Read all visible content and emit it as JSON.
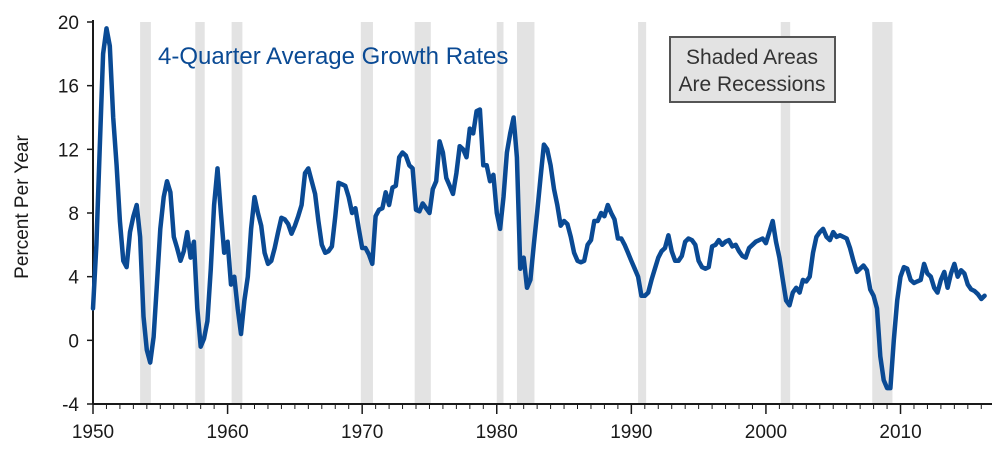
{
  "chart_data": {
    "type": "line",
    "title": "4-Quarter Average Growth Rates",
    "ylabel": "Percent Per Year",
    "xlabel": "",
    "xlim": [
      1950,
      2016.5
    ],
    "ylim": [
      -4,
      20
    ],
    "xticks": [
      1950,
      1960,
      1970,
      1980,
      1990,
      2000,
      2010
    ],
    "yticks": [
      -4,
      0,
      4,
      8,
      12,
      16,
      20
    ],
    "annotation": {
      "line1": "Shaded Areas",
      "line2": "Are Recessions"
    },
    "colors": {
      "line": "#0a4a94",
      "recession": "#e3e3e3",
      "axis": "#1a1a1a"
    },
    "recessions": [
      [
        1953.5,
        1954.3
      ],
      [
        1957.6,
        1958.3
      ],
      [
        1960.3,
        1961.1
      ],
      [
        1969.9,
        1970.8
      ],
      [
        1973.9,
        1975.1
      ],
      [
        1980.0,
        1980.5
      ],
      [
        1981.5,
        1982.8
      ],
      [
        1990.5,
        1991.1
      ],
      [
        2001.1,
        2001.8
      ],
      [
        2007.9,
        2009.4
      ]
    ],
    "series": [
      {
        "name": "4-Quarter Average Growth Rate",
        "points": [
          [
            1950.0,
            2.0
          ],
          [
            1950.25,
            6.0
          ],
          [
            1950.5,
            12.0
          ],
          [
            1950.75,
            18.0
          ],
          [
            1951.0,
            19.6
          ],
          [
            1951.25,
            18.5
          ],
          [
            1951.5,
            14.0
          ],
          [
            1951.75,
            11.0
          ],
          [
            1952.0,
            7.5
          ],
          [
            1952.25,
            5.0
          ],
          [
            1952.5,
            4.6
          ],
          [
            1952.75,
            6.8
          ],
          [
            1953.0,
            7.8
          ],
          [
            1953.25,
            8.5
          ],
          [
            1953.5,
            6.5
          ],
          [
            1953.75,
            1.5
          ],
          [
            1954.0,
            -0.6
          ],
          [
            1954.25,
            -1.4
          ],
          [
            1954.5,
            0.2
          ],
          [
            1954.75,
            3.5
          ],
          [
            1955.0,
            7.0
          ],
          [
            1955.25,
            9.0
          ],
          [
            1955.5,
            10.0
          ],
          [
            1955.75,
            9.3
          ],
          [
            1956.0,
            6.5
          ],
          [
            1956.25,
            5.8
          ],
          [
            1956.5,
            5.0
          ],
          [
            1956.75,
            5.6
          ],
          [
            1957.0,
            6.8
          ],
          [
            1957.25,
            5.2
          ],
          [
            1957.5,
            6.2
          ],
          [
            1957.75,
            2.0
          ],
          [
            1958.0,
            -0.4
          ],
          [
            1958.25,
            0.1
          ],
          [
            1958.5,
            1.2
          ],
          [
            1958.75,
            4.5
          ],
          [
            1959.0,
            8.5
          ],
          [
            1959.25,
            10.8
          ],
          [
            1959.5,
            8.0
          ],
          [
            1959.75,
            5.5
          ],
          [
            1960.0,
            6.2
          ],
          [
            1960.25,
            3.5
          ],
          [
            1960.5,
            4.0
          ],
          [
            1960.75,
            2.0
          ],
          [
            1961.0,
            0.4
          ],
          [
            1961.25,
            2.5
          ],
          [
            1961.5,
            4.0
          ],
          [
            1961.75,
            7.0
          ],
          [
            1962.0,
            9.0
          ],
          [
            1962.25,
            8.0
          ],
          [
            1962.5,
            7.2
          ],
          [
            1962.75,
            5.5
          ],
          [
            1963.0,
            4.8
          ],
          [
            1963.25,
            5.0
          ],
          [
            1963.5,
            5.8
          ],
          [
            1963.75,
            6.8
          ],
          [
            1964.0,
            7.7
          ],
          [
            1964.25,
            7.6
          ],
          [
            1964.5,
            7.3
          ],
          [
            1964.75,
            6.7
          ],
          [
            1965.0,
            7.2
          ],
          [
            1965.25,
            7.8
          ],
          [
            1965.5,
            8.5
          ],
          [
            1965.75,
            10.5
          ],
          [
            1966.0,
            10.8
          ],
          [
            1966.25,
            10.0
          ],
          [
            1966.5,
            9.2
          ],
          [
            1966.75,
            7.5
          ],
          [
            1967.0,
            6.0
          ],
          [
            1967.25,
            5.5
          ],
          [
            1967.5,
            5.6
          ],
          [
            1967.75,
            5.9
          ],
          [
            1968.0,
            7.8
          ],
          [
            1968.25,
            9.9
          ],
          [
            1968.5,
            9.8
          ],
          [
            1968.75,
            9.7
          ],
          [
            1969.0,
            9.0
          ],
          [
            1969.25,
            8.0
          ],
          [
            1969.5,
            8.3
          ],
          [
            1969.75,
            7.0
          ],
          [
            1970.0,
            5.8
          ],
          [
            1970.25,
            5.8
          ],
          [
            1970.5,
            5.4
          ],
          [
            1970.75,
            4.8
          ],
          [
            1971.0,
            7.8
          ],
          [
            1971.25,
            8.2
          ],
          [
            1971.5,
            8.3
          ],
          [
            1971.75,
            9.3
          ],
          [
            1972.0,
            8.5
          ],
          [
            1972.25,
            9.6
          ],
          [
            1972.5,
            9.7
          ],
          [
            1972.75,
            11.5
          ],
          [
            1973.0,
            11.8
          ],
          [
            1973.25,
            11.6
          ],
          [
            1973.5,
            11.0
          ],
          [
            1973.75,
            10.8
          ],
          [
            1974.0,
            8.2
          ],
          [
            1974.25,
            8.1
          ],
          [
            1974.5,
            8.6
          ],
          [
            1974.75,
            8.3
          ],
          [
            1975.0,
            8.0
          ],
          [
            1975.25,
            9.5
          ],
          [
            1975.5,
            10.0
          ],
          [
            1975.75,
            12.5
          ],
          [
            1976.0,
            11.8
          ],
          [
            1976.25,
            10.2
          ],
          [
            1976.5,
            9.7
          ],
          [
            1976.75,
            9.2
          ],
          [
            1977.0,
            10.5
          ],
          [
            1977.25,
            12.2
          ],
          [
            1977.5,
            12.0
          ],
          [
            1977.75,
            11.5
          ],
          [
            1978.0,
            13.3
          ],
          [
            1978.25,
            13.0
          ],
          [
            1978.5,
            14.4
          ],
          [
            1978.75,
            14.5
          ],
          [
            1979.0,
            11.0
          ],
          [
            1979.25,
            11.0
          ],
          [
            1979.5,
            10.0
          ],
          [
            1979.75,
            10.4
          ],
          [
            1980.0,
            8.0
          ],
          [
            1980.25,
            7.0
          ],
          [
            1980.5,
            9.0
          ],
          [
            1980.75,
            11.8
          ],
          [
            1981.0,
            13.0
          ],
          [
            1981.25,
            14.0
          ],
          [
            1981.5,
            11.5
          ],
          [
            1981.75,
            4.5
          ],
          [
            1982.0,
            5.2
          ],
          [
            1982.25,
            3.3
          ],
          [
            1982.5,
            3.8
          ],
          [
            1982.75,
            6.0
          ],
          [
            1983.0,
            8.0
          ],
          [
            1983.25,
            10.2
          ],
          [
            1983.5,
            12.3
          ],
          [
            1983.75,
            12.0
          ],
          [
            1984.0,
            11.0
          ],
          [
            1984.25,
            9.5
          ],
          [
            1984.5,
            8.5
          ],
          [
            1984.75,
            7.2
          ],
          [
            1985.0,
            7.5
          ],
          [
            1985.25,
            7.3
          ],
          [
            1985.5,
            6.5
          ],
          [
            1985.75,
            5.5
          ],
          [
            1986.0,
            5.0
          ],
          [
            1986.25,
            4.9
          ],
          [
            1986.5,
            5.0
          ],
          [
            1986.75,
            6.0
          ],
          [
            1987.0,
            6.3
          ],
          [
            1987.25,
            7.5
          ],
          [
            1987.5,
            7.5
          ],
          [
            1987.75,
            8.0
          ],
          [
            1988.0,
            7.8
          ],
          [
            1988.25,
            8.5
          ],
          [
            1988.5,
            8.0
          ],
          [
            1988.75,
            7.6
          ],
          [
            1989.0,
            6.4
          ],
          [
            1989.25,
            6.4
          ],
          [
            1989.5,
            6.0
          ],
          [
            1989.75,
            5.5
          ],
          [
            1990.0,
            5.0
          ],
          [
            1990.25,
            4.5
          ],
          [
            1990.5,
            4.0
          ],
          [
            1990.75,
            2.8
          ],
          [
            1991.0,
            2.8
          ],
          [
            1991.25,
            3.0
          ],
          [
            1991.5,
            3.8
          ],
          [
            1991.75,
            4.5
          ],
          [
            1992.0,
            5.2
          ],
          [
            1992.25,
            5.6
          ],
          [
            1992.5,
            5.8
          ],
          [
            1992.75,
            6.6
          ],
          [
            1993.0,
            5.6
          ],
          [
            1993.25,
            5.0
          ],
          [
            1993.5,
            5.0
          ],
          [
            1993.75,
            5.3
          ],
          [
            1994.0,
            6.2
          ],
          [
            1994.25,
            6.4
          ],
          [
            1994.5,
            6.3
          ],
          [
            1994.75,
            6.0
          ],
          [
            1995.0,
            5.0
          ],
          [
            1995.25,
            4.6
          ],
          [
            1995.5,
            4.5
          ],
          [
            1995.75,
            4.6
          ],
          [
            1996.0,
            5.9
          ],
          [
            1996.25,
            6.0
          ],
          [
            1996.5,
            6.3
          ],
          [
            1996.75,
            6.0
          ],
          [
            1997.0,
            6.2
          ],
          [
            1997.25,
            6.3
          ],
          [
            1997.5,
            5.9
          ],
          [
            1997.75,
            6.0
          ],
          [
            1998.0,
            5.6
          ],
          [
            1998.25,
            5.3
          ],
          [
            1998.5,
            5.2
          ],
          [
            1998.75,
            5.8
          ],
          [
            1999.0,
            6.0
          ],
          [
            1999.25,
            6.2
          ],
          [
            1999.5,
            6.3
          ],
          [
            1999.75,
            6.4
          ],
          [
            2000.0,
            6.1
          ],
          [
            2000.25,
            6.8
          ],
          [
            2000.5,
            7.5
          ],
          [
            2000.75,
            6.2
          ],
          [
            2001.0,
            5.2
          ],
          [
            2001.25,
            3.8
          ],
          [
            2001.5,
            2.5
          ],
          [
            2001.75,
            2.2
          ],
          [
            2002.0,
            3.0
          ],
          [
            2002.25,
            3.3
          ],
          [
            2002.5,
            3.0
          ],
          [
            2002.75,
            3.8
          ],
          [
            2003.0,
            3.7
          ],
          [
            2003.25,
            4.0
          ],
          [
            2003.5,
            5.5
          ],
          [
            2003.75,
            6.5
          ],
          [
            2004.0,
            6.8
          ],
          [
            2004.25,
            7.0
          ],
          [
            2004.5,
            6.5
          ],
          [
            2004.75,
            6.3
          ],
          [
            2005.0,
            6.8
          ],
          [
            2005.25,
            6.5
          ],
          [
            2005.5,
            6.6
          ],
          [
            2005.75,
            6.5
          ],
          [
            2006.0,
            6.4
          ],
          [
            2006.25,
            5.8
          ],
          [
            2006.5,
            5.0
          ],
          [
            2006.75,
            4.3
          ],
          [
            2007.0,
            4.5
          ],
          [
            2007.25,
            4.7
          ],
          [
            2007.5,
            4.4
          ],
          [
            2007.75,
            3.2
          ],
          [
            2008.0,
            2.8
          ],
          [
            2008.25,
            2.0
          ],
          [
            2008.5,
            -1.0
          ],
          [
            2008.75,
            -2.5
          ],
          [
            2009.0,
            -3.0
          ],
          [
            2009.25,
            -3.0
          ],
          [
            2009.5,
            0.0
          ],
          [
            2009.75,
            2.5
          ],
          [
            2010.0,
            4.0
          ],
          [
            2010.25,
            4.6
          ],
          [
            2010.5,
            4.5
          ],
          [
            2010.75,
            3.8
          ],
          [
            2011.0,
            3.6
          ],
          [
            2011.25,
            3.7
          ],
          [
            2011.5,
            3.8
          ],
          [
            2011.75,
            4.8
          ],
          [
            2012.0,
            4.2
          ],
          [
            2012.25,
            4.0
          ],
          [
            2012.5,
            3.3
          ],
          [
            2012.75,
            3.0
          ],
          [
            2013.0,
            3.8
          ],
          [
            2013.25,
            4.3
          ],
          [
            2013.5,
            3.3
          ],
          [
            2013.75,
            4.2
          ],
          [
            2014.0,
            4.8
          ],
          [
            2014.25,
            4.0
          ],
          [
            2014.5,
            4.4
          ],
          [
            2014.75,
            4.2
          ],
          [
            2015.0,
            3.5
          ],
          [
            2015.25,
            3.2
          ],
          [
            2015.5,
            3.1
          ],
          [
            2015.75,
            2.9
          ],
          [
            2016.0,
            2.6
          ],
          [
            2016.25,
            2.8
          ]
        ]
      }
    ]
  }
}
